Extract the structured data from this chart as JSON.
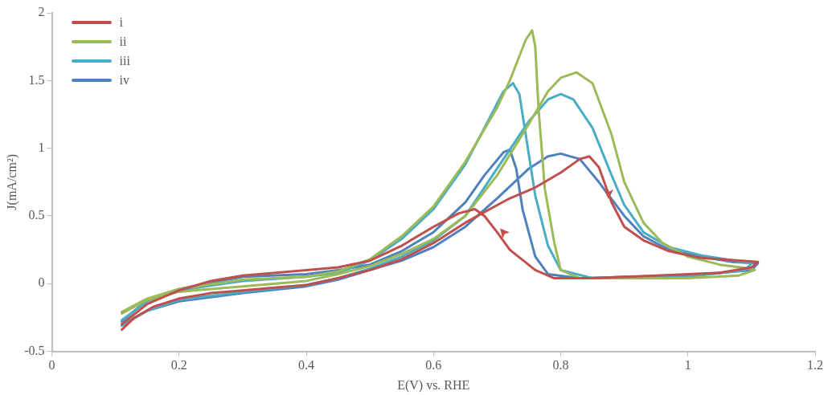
{
  "chart_data": {
    "type": "line",
    "xlabel": "E(V) vs. RHE",
    "ylabel": "J(mA/cm²)",
    "xlim": [
      0,
      1.2
    ],
    "xticks": [
      0,
      0.2,
      0.4,
      0.6,
      0.8,
      1,
      1.2
    ],
    "ylim": [
      -0.5,
      2
    ],
    "yticks": [
      -0.5,
      0,
      0.5,
      1,
      1.5,
      2
    ],
    "grid": false,
    "legend": "top left",
    "marker": "none",
    "line_style": "solid",
    "series": [
      {
        "name": "i",
        "color": "#c0504d",
        "x": [
          0.11,
          0.13,
          0.16,
          0.2,
          0.25,
          0.3,
          0.35,
          0.4,
          0.45,
          0.5,
          0.55,
          0.6,
          0.65,
          0.7,
          0.72,
          0.76,
          0.8,
          0.83,
          0.845,
          0.86,
          0.88,
          0.9,
          0.93,
          0.97,
          1.02,
          1.08,
          1.11,
          1.1,
          1.05,
          0.95,
          0.85,
          0.79,
          0.76,
          0.72,
          0.7,
          0.68,
          0.665,
          0.64,
          0.6,
          0.55,
          0.5,
          0.45,
          0.4,
          0.3,
          0.25,
          0.2,
          0.15,
          0.11
        ],
        "values": [
          -0.34,
          -0.25,
          -0.17,
          -0.11,
          -0.07,
          -0.05,
          -0.03,
          -0.01,
          0.04,
          0.1,
          0.18,
          0.3,
          0.45,
          0.58,
          0.63,
          0.71,
          0.82,
          0.92,
          0.94,
          0.86,
          0.6,
          0.42,
          0.32,
          0.24,
          0.19,
          0.17,
          0.16,
          0.12,
          0.08,
          0.06,
          0.04,
          0.04,
          0.1,
          0.25,
          0.38,
          0.5,
          0.55,
          0.52,
          0.42,
          0.28,
          0.17,
          0.12,
          0.1,
          0.06,
          0.02,
          -0.05,
          -0.15,
          -0.3
        ]
      },
      {
        "name": "ii",
        "color": "#9bbb59",
        "x": [
          0.11,
          0.15,
          0.2,
          0.3,
          0.4,
          0.45,
          0.5,
          0.55,
          0.6,
          0.65,
          0.7,
          0.75,
          0.78,
          0.8,
          0.825,
          0.85,
          0.88,
          0.9,
          0.93,
          0.96,
          1.0,
          1.05,
          1.1,
          1.105,
          1.08,
          1.0,
          0.9,
          0.83,
          0.8,
          0.79,
          0.775,
          0.765,
          0.76,
          0.755,
          0.745,
          0.72,
          0.7,
          0.65,
          0.6,
          0.55,
          0.5,
          0.45,
          0.4,
          0.3,
          0.2,
          0.15,
          0.11
        ],
        "values": [
          -0.22,
          -0.12,
          -0.06,
          -0.02,
          0.02,
          0.07,
          0.13,
          0.22,
          0.33,
          0.5,
          0.8,
          1.18,
          1.42,
          1.52,
          1.56,
          1.48,
          1.1,
          0.75,
          0.45,
          0.3,
          0.2,
          0.14,
          0.11,
          0.1,
          0.06,
          0.04,
          0.04,
          0.04,
          0.1,
          0.3,
          0.7,
          1.3,
          1.75,
          1.87,
          1.8,
          1.5,
          1.3,
          0.9,
          0.57,
          0.35,
          0.18,
          0.09,
          0.05,
          0.03,
          -0.04,
          -0.11,
          -0.21
        ]
      },
      {
        "name": "iii",
        "color": "#4bacc6",
        "x": [
          0.11,
          0.15,
          0.2,
          0.3,
          0.4,
          0.45,
          0.5,
          0.55,
          0.6,
          0.65,
          0.7,
          0.75,
          0.78,
          0.8,
          0.82,
          0.85,
          0.88,
          0.9,
          0.93,
          0.97,
          1.02,
          1.06,
          1.1,
          1.09,
          1.0,
          0.9,
          0.85,
          0.8,
          0.78,
          0.76,
          0.745,
          0.735,
          0.725,
          0.71,
          0.68,
          0.65,
          0.6,
          0.55,
          0.5,
          0.45,
          0.4,
          0.3,
          0.2,
          0.15,
          0.11
        ],
        "values": [
          -0.31,
          -0.2,
          -0.12,
          -0.06,
          -0.01,
          0.04,
          0.11,
          0.2,
          0.32,
          0.5,
          0.85,
          1.2,
          1.36,
          1.4,
          1.36,
          1.15,
          0.8,
          0.58,
          0.38,
          0.27,
          0.21,
          0.18,
          0.15,
          0.1,
          0.05,
          0.04,
          0.04,
          0.1,
          0.28,
          0.65,
          1.1,
          1.4,
          1.48,
          1.42,
          1.15,
          0.88,
          0.55,
          0.33,
          0.17,
          0.08,
          0.05,
          0.02,
          -0.05,
          -0.13,
          -0.27
        ]
      },
      {
        "name": "iv",
        "color": "#4f81bd",
        "x": [
          0.11,
          0.15,
          0.2,
          0.3,
          0.4,
          0.45,
          0.5,
          0.55,
          0.6,
          0.65,
          0.7,
          0.75,
          0.78,
          0.8,
          0.83,
          0.86,
          0.9,
          0.93,
          0.97,
          1.02,
          1.07,
          1.11,
          1.1,
          1.0,
          0.9,
          0.83,
          0.78,
          0.76,
          0.74,
          0.73,
          0.72,
          0.71,
          0.68,
          0.65,
          0.6,
          0.55,
          0.5,
          0.45,
          0.4,
          0.3,
          0.2,
          0.15,
          0.11
        ],
        "values": [
          -0.31,
          -0.2,
          -0.13,
          -0.07,
          -0.02,
          0.03,
          0.1,
          0.17,
          0.27,
          0.42,
          0.63,
          0.85,
          0.94,
          0.96,
          0.92,
          0.75,
          0.5,
          0.35,
          0.25,
          0.2,
          0.16,
          0.15,
          0.1,
          0.06,
          0.05,
          0.04,
          0.07,
          0.2,
          0.55,
          0.85,
          0.99,
          0.97,
          0.8,
          0.6,
          0.38,
          0.24,
          0.14,
          0.1,
          0.07,
          0.05,
          -0.04,
          -0.12,
          -0.28
        ]
      }
    ]
  }
}
